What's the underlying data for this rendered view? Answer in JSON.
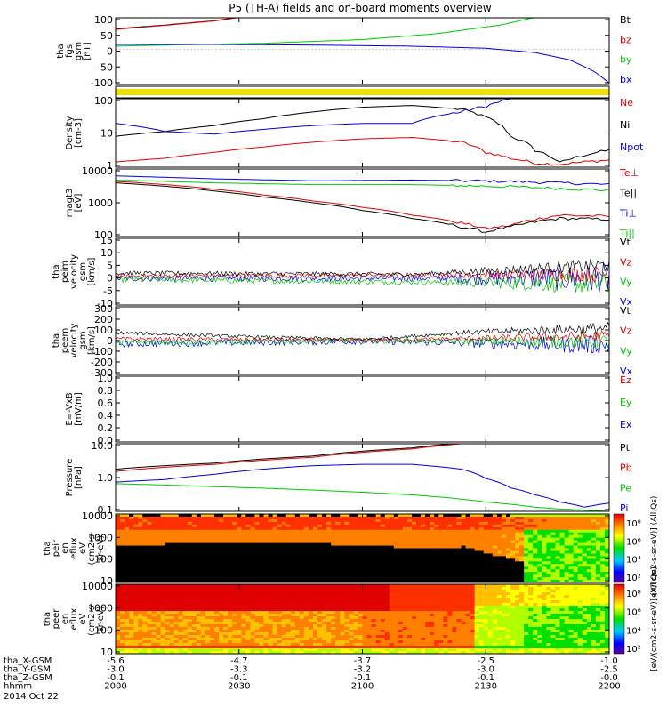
{
  "title": "P5 (TH-A) fields and on-board moments overview",
  "colors": {
    "black": "#000000",
    "red": "#e00000",
    "green": "#00c800",
    "blue": "#0000e0",
    "yellow": "#f0e000"
  },
  "xaxis": {
    "ticks": [
      {
        "hhmm": "2000",
        "x": "-5.6",
        "y": "-3.0",
        "z": "-0.1"
      },
      {
        "hhmm": "2030",
        "x": "-4.7",
        "y": "-3.3",
        "z": "-0.1"
      },
      {
        "hhmm": "2100",
        "x": "-3.7",
        "y": "-3.2",
        "z": "-0.1"
      },
      {
        "hhmm": "2130",
        "x": "-2.5",
        "y": "-3.0",
        "z": "-0.1"
      },
      {
        "hhmm": "2200",
        "x": "-1.0",
        "y": "-2.5",
        "z": "-0.0"
      }
    ],
    "row_labels": [
      "tha_X-GSM",
      "tha_Y-GSM",
      "tha_Z-GSM",
      "hhmm"
    ],
    "date": "2014 Oct 22"
  },
  "chart_data": [
    {
      "id": "fgs",
      "type": "line",
      "ylabel": [
        "tha",
        "fgs",
        "gsm",
        "[nT]"
      ],
      "yticks": [
        "100",
        "50",
        "0",
        "-50",
        "-100"
      ],
      "ylim": [
        -120,
        110
      ],
      "legend": [
        {
          "name": "Bt",
          "color": "black"
        },
        {
          "name": "bz",
          "color": "red"
        },
        {
          "name": "by",
          "color": "green"
        },
        {
          "name": "bx",
          "color": "blue"
        }
      ],
      "series": [
        {
          "name": "Bt",
          "color": "black",
          "x": [
            0,
            0.1,
            0.2,
            0.25
          ],
          "y": [
            72,
            85,
            100,
            112
          ]
        },
        {
          "name": "bz",
          "color": "red",
          "x": [
            0,
            0.1,
            0.2,
            0.25
          ],
          "y": [
            70,
            84,
            99,
            111
          ]
        },
        {
          "name": "by",
          "color": "green",
          "x": [
            0,
            0.1,
            0.3,
            0.5,
            0.65,
            0.78,
            0.85
          ],
          "y": [
            12,
            16,
            22,
            35,
            55,
            85,
            112
          ]
        },
        {
          "name": "bx",
          "color": "blue",
          "x": [
            0,
            0.2,
            0.4,
            0.6,
            0.75,
            0.85,
            0.92,
            0.97,
            1.0
          ],
          "y": [
            18,
            18,
            16,
            12,
            5,
            -10,
            -35,
            -75,
            -115
          ]
        }
      ]
    },
    {
      "id": "strip",
      "type": "bar",
      "color": "yellow"
    },
    {
      "id": "density",
      "type": "line",
      "scale": "log",
      "ylabel": [
        "Density",
        "[cm-3]"
      ],
      "yticks": [
        "100",
        "10",
        "1"
      ],
      "ylim": [
        0.7,
        250
      ],
      "legend": [
        {
          "name": "Ne",
          "color": "red"
        },
        {
          "name": "Ni",
          "color": "black"
        },
        {
          "name": "Npot",
          "color": "blue"
        }
      ],
      "series": [
        {
          "name": "Ni",
          "color": "black",
          "x": [
            0,
            0.1,
            0.2,
            0.3,
            0.4,
            0.5,
            0.6,
            0.7,
            0.75,
            0.8,
            0.85,
            0.9,
            1.0
          ],
          "y": [
            10,
            15,
            25,
            45,
            80,
            120,
            140,
            100,
            50,
            10,
            3,
            1,
            3
          ]
        },
        {
          "name": "Ne",
          "color": "red",
          "x": [
            0,
            0.1,
            0.2,
            0.3,
            0.4,
            0.5,
            0.6,
            0.7,
            0.75,
            0.8,
            0.85,
            0.9,
            1.0
          ],
          "y": [
            1.1,
            1.5,
            2.5,
            4,
            6,
            8,
            9,
            6,
            2.5,
            1.5,
            1,
            0.9,
            1.3
          ]
        },
        {
          "name": "Npot",
          "color": "blue",
          "x": [
            0,
            0.1,
            0.2,
            0.3,
            0.4,
            0.5,
            0.6,
            0.65,
            0.7,
            0.75,
            0.8
          ],
          "y": [
            30,
            15,
            12,
            18,
            25,
            30,
            30,
            55,
            80,
            130,
            240
          ]
        }
      ]
    },
    {
      "id": "temp",
      "type": "line",
      "scale": "log",
      "ylabel": [
        "magt3",
        "[eV]"
      ],
      "yticks": [
        "10000",
        "1000",
        "100"
      ],
      "ylim": [
        30,
        12000
      ],
      "legend": [
        {
          "name": "Te⊥",
          "color": "red"
        },
        {
          "name": "Te||",
          "color": "black"
        },
        {
          "name": "Ti⊥",
          "color": "blue"
        },
        {
          "name": "Ti||",
          "color": "green"
        }
      ],
      "series": [
        {
          "name": "Ti⊥",
          "color": "blue",
          "x": [
            0,
            0.2,
            0.4,
            0.6,
            0.8,
            1.0
          ],
          "y": [
            6500,
            5000,
            4200,
            4500,
            4000,
            3000
          ]
        },
        {
          "name": "Ti||",
          "color": "green",
          "x": [
            0,
            0.2,
            0.4,
            0.6,
            0.8,
            1.0
          ],
          "y": [
            4500,
            3500,
            3000,
            3000,
            2500,
            1800
          ]
        },
        {
          "name": "Te⊥",
          "color": "red",
          "x": [
            0,
            0.1,
            0.2,
            0.3,
            0.4,
            0.5,
            0.6,
            0.7,
            0.75,
            0.8,
            0.9,
            1.0
          ],
          "y": [
            4000,
            3000,
            2000,
            1200,
            700,
            400,
            200,
            100,
            60,
            80,
            200,
            180
          ]
        },
        {
          "name": "Te||",
          "color": "black",
          "x": [
            0,
            0.1,
            0.2,
            0.3,
            0.4,
            0.5,
            0.6,
            0.7,
            0.75,
            0.8,
            0.9,
            1.0
          ],
          "y": [
            3500,
            2600,
            1700,
            1000,
            600,
            300,
            150,
            70,
            45,
            70,
            150,
            140
          ]
        }
      ]
    },
    {
      "id": "vel_i",
      "type": "line",
      "ylabel": [
        "tha",
        "peim",
        "velocity",
        "gsm",
        "[km/s]"
      ],
      "yticks": [
        "15",
        "10",
        "5",
        "0",
        "-5",
        "-10"
      ],
      "ylim": [
        -10,
        15
      ],
      "legend": [
        {
          "name": "Vt",
          "color": "black"
        },
        {
          "name": "Vz",
          "color": "red"
        },
        {
          "name": "Vy",
          "color": "green"
        },
        {
          "name": "Vx",
          "color": "blue"
        }
      ],
      "series": [
        {
          "name": "Vx",
          "color": "blue",
          "x": [
            0,
            1
          ],
          "y": [
            0,
            0
          ],
          "noise": 1.2,
          "grow": 5
        },
        {
          "name": "Vy",
          "color": "green",
          "x": [
            0,
            1
          ],
          "y": [
            -0.5,
            -2
          ],
          "noise": 1.0,
          "grow": 3.5
        },
        {
          "name": "Vz",
          "color": "red",
          "x": [
            0,
            1
          ],
          "y": [
            0.8,
            1.5
          ],
          "noise": 0.8,
          "grow": 2.5
        },
        {
          "name": "Vt",
          "color": "black",
          "x": [
            0,
            0.6,
            1
          ],
          "y": [
            2,
            1.5,
            5
          ],
          "noise": 0.8,
          "grow": 2
        }
      ]
    },
    {
      "id": "vel_e",
      "type": "line",
      "ylabel": [
        "tha",
        "peem",
        "velocity",
        "gsm",
        "[km/s]"
      ],
      "yticks": [
        "300",
        "200",
        "100",
        "0",
        "-100",
        "-200",
        "-300"
      ],
      "ylim": [
        -300,
        300
      ],
      "legend": [
        {
          "name": "Vt",
          "color": "black"
        },
        {
          "name": "Vz",
          "color": "red"
        },
        {
          "name": "Vy",
          "color": "green"
        },
        {
          "name": "Vx",
          "color": "blue"
        }
      ],
      "series": [
        {
          "name": "Vx",
          "color": "blue",
          "x": [
            0,
            0.5,
            1
          ],
          "y": [
            -30,
            -5,
            -40
          ],
          "noise": 30,
          "grow": 60
        },
        {
          "name": "Vy",
          "color": "green",
          "x": [
            0,
            0.5,
            1
          ],
          "y": [
            -20,
            0,
            -10
          ],
          "noise": 25,
          "grow": 45
        },
        {
          "name": "Vz",
          "color": "red",
          "x": [
            0,
            0.5,
            1
          ],
          "y": [
            15,
            0,
            40
          ],
          "noise": 18,
          "grow": 35
        },
        {
          "name": "Vt",
          "color": "black",
          "x": [
            0,
            0.3,
            0.5,
            0.7,
            1
          ],
          "y": [
            70,
            30,
            10,
            70,
            110
          ],
          "noise": 15,
          "grow": 40
        }
      ]
    },
    {
      "id": "efield",
      "type": "line",
      "ylabel": [
        "E=-VxB",
        "[mV/m]"
      ],
      "yticks": [
        "1.0",
        "0.8",
        "0.6",
        "0.4",
        "0.2",
        "0.0"
      ],
      "ylim": [
        0,
        1
      ],
      "legend": [
        {
          "name": "Ez",
          "color": "red"
        },
        {
          "name": "Ey",
          "color": "green"
        },
        {
          "name": "Ex",
          "color": "blue"
        }
      ],
      "series": []
    },
    {
      "id": "pressure",
      "type": "line",
      "scale": "log",
      "ylabel": [
        "Pressure",
        "[nPa]"
      ],
      "yticks": [
        "10.0",
        "1.0",
        "0.1"
      ],
      "ylim": [
        0.04,
        30
      ],
      "legend": [
        {
          "name": "Pt",
          "color": "black"
        },
        {
          "name": "Pb",
          "color": "red"
        },
        {
          "name": "Pe",
          "color": "green"
        },
        {
          "name": "Pi",
          "color": "blue"
        }
      ],
      "series": [
        {
          "name": "Pt",
          "color": "black",
          "x": [
            0,
            0.2,
            0.4,
            0.6,
            0.7
          ],
          "y": [
            2.5,
            4.5,
            9,
            20,
            32
          ]
        },
        {
          "name": "Pb",
          "color": "red",
          "x": [
            0,
            0.2,
            0.4,
            0.6,
            0.7
          ],
          "y": [
            2,
            4,
            8,
            18,
            30
          ]
        },
        {
          "name": "Pi",
          "color": "blue",
          "x": [
            0,
            0.1,
            0.2,
            0.3,
            0.4,
            0.5,
            0.6,
            0.7,
            0.75,
            0.8,
            0.85,
            0.9,
            0.95,
            1.0
          ],
          "y": [
            0.7,
            0.9,
            1.5,
            2.5,
            3.5,
            4,
            4,
            2.5,
            1,
            0.4,
            0.2,
            0.1,
            0.06,
            0.09
          ]
        },
        {
          "name": "Pe",
          "color": "green",
          "x": [
            0,
            0.2,
            0.4,
            0.6,
            0.75,
            0.85,
            0.9,
            1.0
          ],
          "y": [
            0.6,
            0.45,
            0.32,
            0.2,
            0.1,
            0.06,
            0.05,
            0.04
          ]
        }
      ]
    },
    {
      "id": "spec_i",
      "type": "heatmap",
      "ylabel": [
        "tha",
        "peir",
        "en",
        "eflux",
        "eV",
        "(cm2-s-",
        "sr-eV)"
      ],
      "yticks": [
        "10000",
        "1000",
        "100",
        "10"
      ],
      "colorbar": {
        "label": "[eV/(cm2-s-sr-eV)] (All Qs)",
        "ticks": [
          "10⁸",
          "10⁶",
          "10⁴",
          "10²"
        ]
      }
    },
    {
      "id": "spec_e",
      "type": "heatmap",
      "ylabel": [
        "tha",
        "peer",
        "en",
        "eflux",
        "eV",
        "(cm2-s-",
        "sr-eV)"
      ],
      "yticks": [
        "10000",
        "1000",
        "100",
        "10"
      ],
      "colorbar": {
        "label": "[eV/(cm2-s-sr-eV)] (All Qs)",
        "ticks": [
          "10⁸",
          "10⁶",
          "10⁴",
          "10²"
        ]
      }
    }
  ]
}
